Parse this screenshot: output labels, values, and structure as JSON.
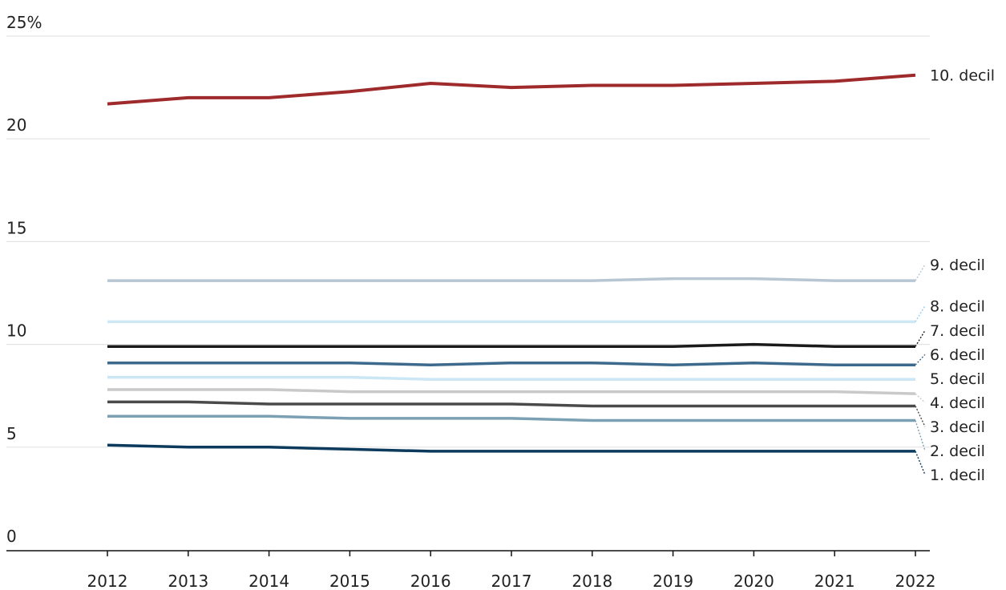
{
  "chart_data": {
    "type": "line",
    "title": "",
    "xlabel": "",
    "ylabel": "",
    "ylim": [
      0,
      25
    ],
    "yticks": [
      0,
      5,
      10,
      15,
      20,
      25
    ],
    "ytick_labels": [
      "0",
      "5",
      "10",
      "15",
      "20",
      "25%"
    ],
    "x": [
      "2012",
      "2013",
      "2014",
      "2015",
      "2016",
      "2017",
      "2018",
      "2019",
      "2020",
      "2021",
      "2022"
    ],
    "grid": "horizontal",
    "legend": "direct labels at right end of lines",
    "series": [
      {
        "name": "10. decil",
        "color": "#9e2a2b",
        "values": [
          21.7,
          22.0,
          22.0,
          22.3,
          22.7,
          22.5,
          22.6,
          22.6,
          22.7,
          22.8,
          23.1
        ]
      },
      {
        "name": "9. decil",
        "color": "#b8c6d3",
        "values": [
          13.1,
          13.1,
          13.1,
          13.1,
          13.1,
          13.1,
          13.1,
          13.2,
          13.2,
          13.1,
          13.1
        ]
      },
      {
        "name": "8. decil",
        "color": "#cfe8f5",
        "values": [
          11.1,
          11.1,
          11.1,
          11.1,
          11.1,
          11.1,
          11.1,
          11.1,
          11.1,
          11.1,
          11.1
        ]
      },
      {
        "name": "7. decil",
        "color": "#1a1a1a",
        "values": [
          9.9,
          9.9,
          9.9,
          9.9,
          9.9,
          9.9,
          9.9,
          9.9,
          10.0,
          9.9,
          9.9
        ]
      },
      {
        "name": "6. decil",
        "color": "#3d6a8c",
        "values": [
          9.1,
          9.1,
          9.1,
          9.1,
          9.0,
          9.1,
          9.1,
          9.0,
          9.1,
          9.0,
          9.0
        ]
      },
      {
        "name": "5. decil",
        "color": "#cbe6f4",
        "values": [
          8.4,
          8.4,
          8.4,
          8.4,
          8.3,
          8.3,
          8.3,
          8.3,
          8.3,
          8.3,
          8.3
        ]
      },
      {
        "name": "4. decil",
        "color": "#c9c9c9",
        "values": [
          7.8,
          7.8,
          7.8,
          7.7,
          7.7,
          7.7,
          7.7,
          7.7,
          7.7,
          7.7,
          7.6
        ]
      },
      {
        "name": "3. decil",
        "color": "#4a4a4a",
        "values": [
          7.2,
          7.2,
          7.1,
          7.1,
          7.1,
          7.1,
          7.0,
          7.0,
          7.0,
          7.0,
          7.0
        ]
      },
      {
        "name": "2. decil",
        "color": "#7b9fb3",
        "values": [
          6.5,
          6.5,
          6.5,
          6.4,
          6.4,
          6.4,
          6.3,
          6.3,
          6.3,
          6.3,
          6.3
        ]
      },
      {
        "name": "1. decil",
        "color": "#0b3a5c",
        "values": [
          5.1,
          5.0,
          5.0,
          4.9,
          4.8,
          4.8,
          4.8,
          4.8,
          4.8,
          4.8,
          4.8
        ]
      }
    ]
  }
}
